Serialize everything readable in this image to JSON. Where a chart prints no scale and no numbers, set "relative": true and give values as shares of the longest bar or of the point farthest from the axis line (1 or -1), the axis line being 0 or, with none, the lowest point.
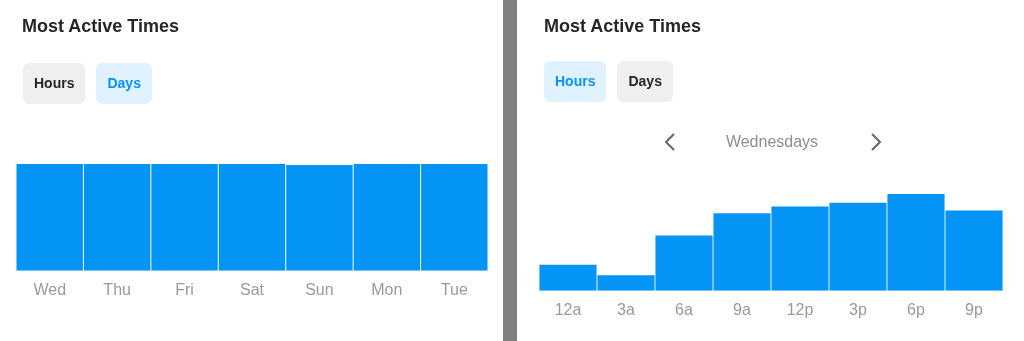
{
  "chart_data": [
    {
      "type": "bar",
      "title": "Most Active Times",
      "annotations": [
        "Hours",
        "Days"
      ],
      "categories": [
        "Wed",
        "Thu",
        "Fri",
        "Sat",
        "Sun",
        "Mon",
        "Tue"
      ],
      "values": [
        1,
        1,
        1,
        1,
        0.99,
        1,
        1
      ],
      "color": "#0494f5",
      "relative": true,
      "grid": false,
      "legend": false
    },
    {
      "type": "bar",
      "title": "Most Active Times",
      "subtitle": "Wednesdays",
      "annotations": [
        "Hours",
        "Days"
      ],
      "categories": [
        "12a",
        "3a",
        "6a",
        "9a",
        "12p",
        "3p",
        "6p",
        "9p"
      ],
      "values": [
        0.27,
        0.16,
        0.57,
        0.8,
        0.87,
        0.91,
        1,
        0.83
      ],
      "color": "#0494f5",
      "relative": true,
      "grid": false,
      "legend": false
    }
  ]
}
